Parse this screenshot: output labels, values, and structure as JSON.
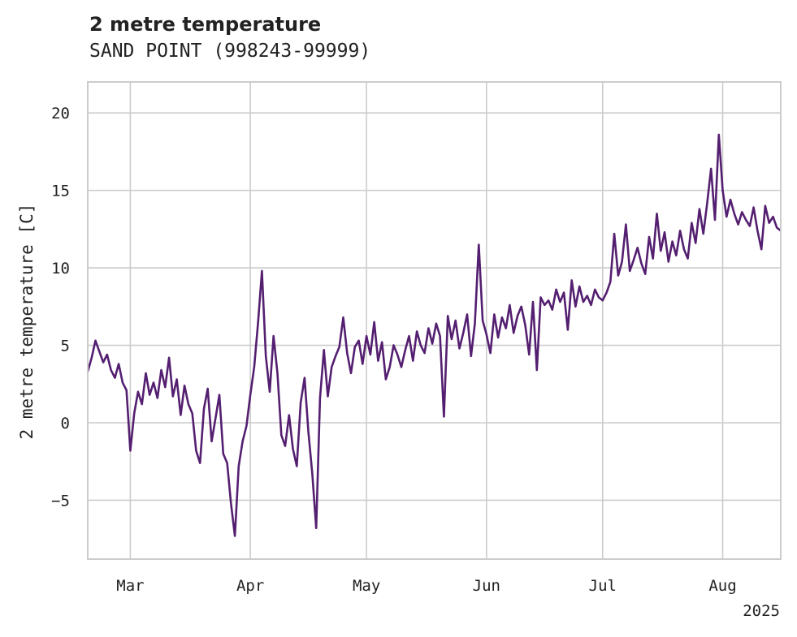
{
  "chart_data": {
    "type": "line",
    "title": "2 metre temperature",
    "subtitle": "SAND POINT (998243-99999)",
    "xlabel": "",
    "ylabel": "2 metre temperature [C]",
    "x_range": [
      "2025-02-18",
      "2025-08-16"
    ],
    "ylim": [
      -8.8,
      22
    ],
    "y_ticks": [
      -5,
      0,
      5,
      10,
      15,
      20
    ],
    "y_tick_labels": [
      "−5",
      "0",
      "5",
      "10",
      "15",
      "20"
    ],
    "x_ticks": [
      {
        "date": "2025-03-01",
        "label": "Mar"
      },
      {
        "date": "2025-04-01",
        "label": "Apr"
      },
      {
        "date": "2025-05-01",
        "label": "May"
      },
      {
        "date": "2025-06-01",
        "label": "Jun"
      },
      {
        "date": "2025-07-01",
        "label": "Jul"
      },
      {
        "date": "2025-08-01",
        "label": "Aug"
      }
    ],
    "x_offset_label": "2025",
    "grid": true,
    "line_color": "#541f70",
    "series": [
      {
        "values": [
          [
            "2025-02-18",
            3.3
          ],
          [
            "2025-02-19",
            4.2
          ],
          [
            "2025-02-20",
            5.3
          ],
          [
            "2025-02-21",
            4.6
          ],
          [
            "2025-02-22",
            3.9
          ],
          [
            "2025-02-23",
            4.4
          ],
          [
            "2025-02-24",
            3.4
          ],
          [
            "2025-02-25",
            2.9
          ],
          [
            "2025-02-26",
            3.8
          ],
          [
            "2025-02-27",
            2.6
          ],
          [
            "2025-02-28",
            2.1
          ],
          [
            "2025-03-01",
            -1.8
          ],
          [
            "2025-03-02",
            0.6
          ],
          [
            "2025-03-03",
            2.0
          ],
          [
            "2025-03-04",
            1.2
          ],
          [
            "2025-03-05",
            3.2
          ],
          [
            "2025-03-06",
            1.8
          ],
          [
            "2025-03-07",
            2.6
          ],
          [
            "2025-03-08",
            1.6
          ],
          [
            "2025-03-09",
            3.4
          ],
          [
            "2025-03-10",
            2.3
          ],
          [
            "2025-03-11",
            4.2
          ],
          [
            "2025-03-12",
            1.7
          ],
          [
            "2025-03-13",
            2.8
          ],
          [
            "2025-03-14",
            0.5
          ],
          [
            "2025-03-15",
            2.4
          ],
          [
            "2025-03-16",
            1.2
          ],
          [
            "2025-03-17",
            0.6
          ],
          [
            "2025-03-18",
            -1.8
          ],
          [
            "2025-03-19",
            -2.6
          ],
          [
            "2025-03-20",
            0.9
          ],
          [
            "2025-03-21",
            2.2
          ],
          [
            "2025-03-22",
            -1.2
          ],
          [
            "2025-03-23",
            0.3
          ],
          [
            "2025-03-24",
            1.8
          ],
          [
            "2025-03-25",
            -2.0
          ],
          [
            "2025-03-26",
            -2.6
          ],
          [
            "2025-03-27",
            -5.2
          ],
          [
            "2025-03-28",
            -7.3
          ],
          [
            "2025-03-29",
            -2.8
          ],
          [
            "2025-03-30",
            -1.2
          ],
          [
            "2025-03-31",
            -0.2
          ],
          [
            "2025-04-01",
            1.8
          ],
          [
            "2025-04-02",
            3.6
          ],
          [
            "2025-04-03",
            6.5
          ],
          [
            "2025-04-04",
            9.8
          ],
          [
            "2025-04-05",
            4.3
          ],
          [
            "2025-04-06",
            2.0
          ],
          [
            "2025-04-07",
            5.6
          ],
          [
            "2025-04-08",
            3.2
          ],
          [
            "2025-04-09",
            -0.8
          ],
          [
            "2025-04-10",
            -1.5
          ],
          [
            "2025-04-11",
            0.5
          ],
          [
            "2025-04-12",
            -1.7
          ],
          [
            "2025-04-13",
            -2.8
          ],
          [
            "2025-04-14",
            1.3
          ],
          [
            "2025-04-15",
            2.9
          ],
          [
            "2025-04-16",
            -0.6
          ],
          [
            "2025-04-17",
            -3.3
          ],
          [
            "2025-04-18",
            -6.8
          ],
          [
            "2025-04-19",
            1.6
          ],
          [
            "2025-04-20",
            4.7
          ],
          [
            "2025-04-21",
            1.7
          ],
          [
            "2025-04-22",
            3.6
          ],
          [
            "2025-04-23",
            4.3
          ],
          [
            "2025-04-24",
            4.9
          ],
          [
            "2025-04-25",
            6.8
          ],
          [
            "2025-04-26",
            4.5
          ],
          [
            "2025-04-27",
            3.2
          ],
          [
            "2025-04-28",
            4.9
          ],
          [
            "2025-04-29",
            5.3
          ],
          [
            "2025-04-30",
            3.8
          ],
          [
            "2025-05-01",
            5.6
          ],
          [
            "2025-05-02",
            4.4
          ],
          [
            "2025-05-03",
            6.5
          ],
          [
            "2025-05-04",
            4.0
          ],
          [
            "2025-05-05",
            5.2
          ],
          [
            "2025-05-06",
            2.8
          ],
          [
            "2025-05-07",
            3.6
          ],
          [
            "2025-05-08",
            5.0
          ],
          [
            "2025-05-09",
            4.4
          ],
          [
            "2025-05-10",
            3.6
          ],
          [
            "2025-05-11",
            4.7
          ],
          [
            "2025-05-12",
            5.6
          ],
          [
            "2025-05-13",
            4.0
          ],
          [
            "2025-05-14",
            5.9
          ],
          [
            "2025-05-15",
            5.0
          ],
          [
            "2025-05-16",
            4.5
          ],
          [
            "2025-05-17",
            6.1
          ],
          [
            "2025-05-18",
            5.1
          ],
          [
            "2025-05-19",
            6.4
          ],
          [
            "2025-05-20",
            5.6
          ],
          [
            "2025-05-21",
            0.4
          ],
          [
            "2025-05-22",
            6.9
          ],
          [
            "2025-05-23",
            5.4
          ],
          [
            "2025-05-24",
            6.6
          ],
          [
            "2025-05-25",
            4.8
          ],
          [
            "2025-05-26",
            5.8
          ],
          [
            "2025-05-27",
            7.0
          ],
          [
            "2025-05-28",
            4.3
          ],
          [
            "2025-05-29",
            6.4
          ],
          [
            "2025-05-30",
            11.5
          ],
          [
            "2025-05-31",
            6.6
          ],
          [
            "2025-06-01",
            5.7
          ],
          [
            "2025-06-02",
            4.5
          ],
          [
            "2025-06-03",
            7.0
          ],
          [
            "2025-06-04",
            5.5
          ],
          [
            "2025-06-05",
            6.8
          ],
          [
            "2025-06-06",
            6.1
          ],
          [
            "2025-06-07",
            7.6
          ],
          [
            "2025-06-08",
            5.8
          ],
          [
            "2025-06-09",
            6.9
          ],
          [
            "2025-06-10",
            7.5
          ],
          [
            "2025-06-11",
            6.3
          ],
          [
            "2025-06-12",
            4.4
          ],
          [
            "2025-06-13",
            7.8
          ],
          [
            "2025-06-14",
            3.4
          ],
          [
            "2025-06-15",
            8.1
          ],
          [
            "2025-06-16",
            7.6
          ],
          [
            "2025-06-17",
            7.9
          ],
          [
            "2025-06-18",
            7.3
          ],
          [
            "2025-06-19",
            8.6
          ],
          [
            "2025-06-20",
            7.8
          ],
          [
            "2025-06-21",
            8.4
          ],
          [
            "2025-06-22",
            6.0
          ],
          [
            "2025-06-23",
            9.2
          ],
          [
            "2025-06-24",
            7.5
          ],
          [
            "2025-06-25",
            8.8
          ],
          [
            "2025-06-26",
            7.8
          ],
          [
            "2025-06-27",
            8.2
          ],
          [
            "2025-06-28",
            7.6
          ],
          [
            "2025-06-29",
            8.6
          ],
          [
            "2025-06-30",
            8.1
          ],
          [
            "2025-07-01",
            7.9
          ],
          [
            "2025-07-02",
            8.4
          ],
          [
            "2025-07-03",
            9.1
          ],
          [
            "2025-07-04",
            12.2
          ],
          [
            "2025-07-05",
            9.5
          ],
          [
            "2025-07-06",
            10.4
          ],
          [
            "2025-07-07",
            12.8
          ],
          [
            "2025-07-08",
            9.8
          ],
          [
            "2025-07-09",
            10.5
          ],
          [
            "2025-07-10",
            11.3
          ],
          [
            "2025-07-11",
            10.3
          ],
          [
            "2025-07-12",
            9.6
          ],
          [
            "2025-07-13",
            12.0
          ],
          [
            "2025-07-14",
            10.6
          ],
          [
            "2025-07-15",
            13.5
          ],
          [
            "2025-07-16",
            11.1
          ],
          [
            "2025-07-17",
            12.3
          ],
          [
            "2025-07-18",
            10.4
          ],
          [
            "2025-07-19",
            11.7
          ],
          [
            "2025-07-20",
            10.8
          ],
          [
            "2025-07-21",
            12.4
          ],
          [
            "2025-07-22",
            11.2
          ],
          [
            "2025-07-23",
            10.6
          ],
          [
            "2025-07-24",
            12.9
          ],
          [
            "2025-07-25",
            11.6
          ],
          [
            "2025-07-26",
            13.8
          ],
          [
            "2025-07-27",
            12.2
          ],
          [
            "2025-07-28",
            14.2
          ],
          [
            "2025-07-29",
            16.4
          ],
          [
            "2025-07-30",
            13.1
          ],
          [
            "2025-07-31",
            18.6
          ],
          [
            "2025-08-01",
            15.0
          ],
          [
            "2025-08-02",
            13.3
          ],
          [
            "2025-08-03",
            14.4
          ],
          [
            "2025-08-04",
            13.5
          ],
          [
            "2025-08-05",
            12.8
          ],
          [
            "2025-08-06",
            13.6
          ],
          [
            "2025-08-07",
            13.1
          ],
          [
            "2025-08-08",
            12.7
          ],
          [
            "2025-08-09",
            13.9
          ],
          [
            "2025-08-10",
            12.4
          ],
          [
            "2025-08-11",
            11.2
          ],
          [
            "2025-08-12",
            14.0
          ],
          [
            "2025-08-13",
            12.9
          ],
          [
            "2025-08-14",
            13.3
          ],
          [
            "2025-08-15",
            12.6
          ],
          [
            "2025-08-16",
            12.4
          ]
        ]
      }
    ]
  }
}
